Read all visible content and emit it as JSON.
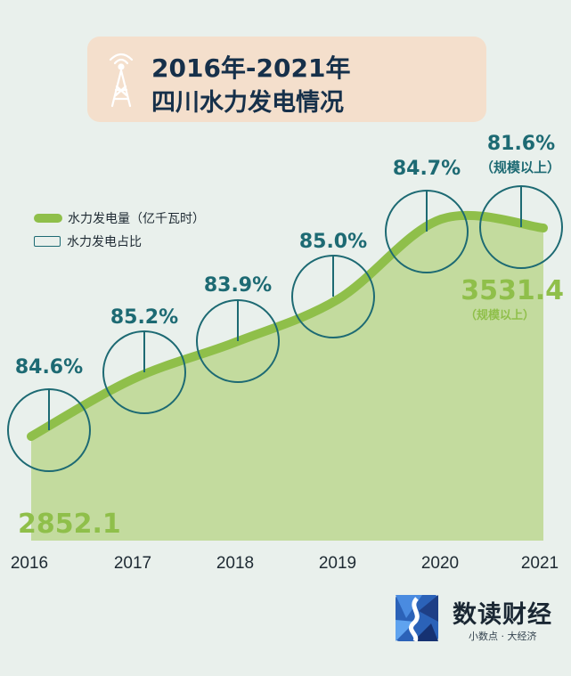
{
  "title": {
    "line1": "2016年-2021年",
    "line2": "四川水力发电情况",
    "icon": "transmission-tower-icon"
  },
  "legend": {
    "line_label": "水力发电量（亿千瓦时）",
    "circle_label": "水力发电占比"
  },
  "chart_data": {
    "type": "area",
    "x": [
      "2016",
      "2017",
      "2018",
      "2019",
      "2020",
      "2021"
    ],
    "series": [
      {
        "name": "水力发电量（亿千瓦时）",
        "values": [
          2852.1,
          3040,
          3160,
          3300,
          3530,
          3531.4
        ]
      },
      {
        "name": "水力发电占比",
        "values": [
          84.6,
          85.2,
          83.9,
          85.0,
          84.7,
          81.6
        ],
        "labels": [
          "84.6%",
          "85.2%",
          "83.9%",
          "85.0%",
          "84.7%",
          "81.6%"
        ]
      }
    ],
    "value_labels": {
      "first": "2852.1",
      "last": "3531.4",
      "last_note": "（规模以上）"
    },
    "pct_last_note": "（规模以上）",
    "colors": {
      "line": "#8fbf4a",
      "area": "#c3db9e",
      "circle": "#1d6a73"
    }
  },
  "brand": {
    "name": "数读财经",
    "tagline": "小数点 · 大经济",
    "logo": "shudu-logo"
  }
}
